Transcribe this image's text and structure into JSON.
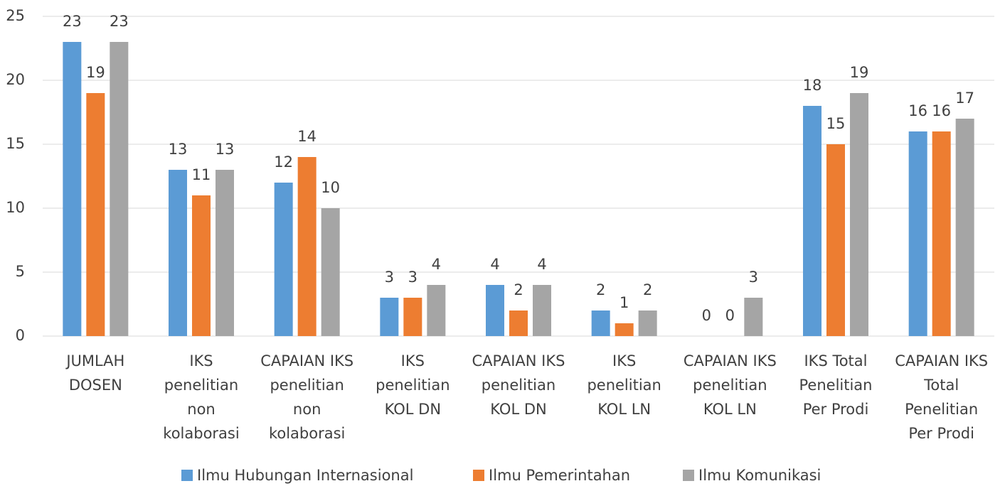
{
  "chart_data": {
    "type": "bar",
    "categories": [
      [
        "JUMLAH",
        "DOSEN"
      ],
      [
        "IKS",
        "penelitian",
        "non",
        "kolaborasi"
      ],
      [
        "CAPAIAN IKS",
        "penelitian",
        "non",
        "kolaborasi"
      ],
      [
        "IKS",
        "penelitian",
        "KOL DN"
      ],
      [
        "CAPAIAN IKS",
        "penelitian",
        "KOL DN"
      ],
      [
        "IKS",
        "penelitian",
        "KOL LN"
      ],
      [
        "CAPAIAN IKS",
        "penelitian",
        "KOL LN"
      ],
      [
        "IKS Total",
        "Penelitian",
        "Per Prodi"
      ],
      [
        "CAPAIAN IKS",
        "Total",
        "Penelitian",
        "Per Prodi"
      ]
    ],
    "series": [
      {
        "name": "Ilmu Hubungan Internasional",
        "color": "#5b9bd5",
        "values": [
          23,
          13,
          12,
          3,
          4,
          2,
          0,
          18,
          16
        ]
      },
      {
        "name": "Ilmu Pemerintahan",
        "color": "#ed7d31",
        "values": [
          19,
          11,
          14,
          3,
          2,
          1,
          0,
          15,
          16
        ]
      },
      {
        "name": "Ilmu Komunikasi",
        "color": "#a5a5a5",
        "values": [
          23,
          13,
          10,
          4,
          4,
          2,
          3,
          19,
          17
        ]
      }
    ],
    "ylim": [
      0,
      25
    ],
    "yticks": [
      0,
      5,
      10,
      15,
      20,
      25
    ],
    "grid": true,
    "legend": "bottom"
  }
}
